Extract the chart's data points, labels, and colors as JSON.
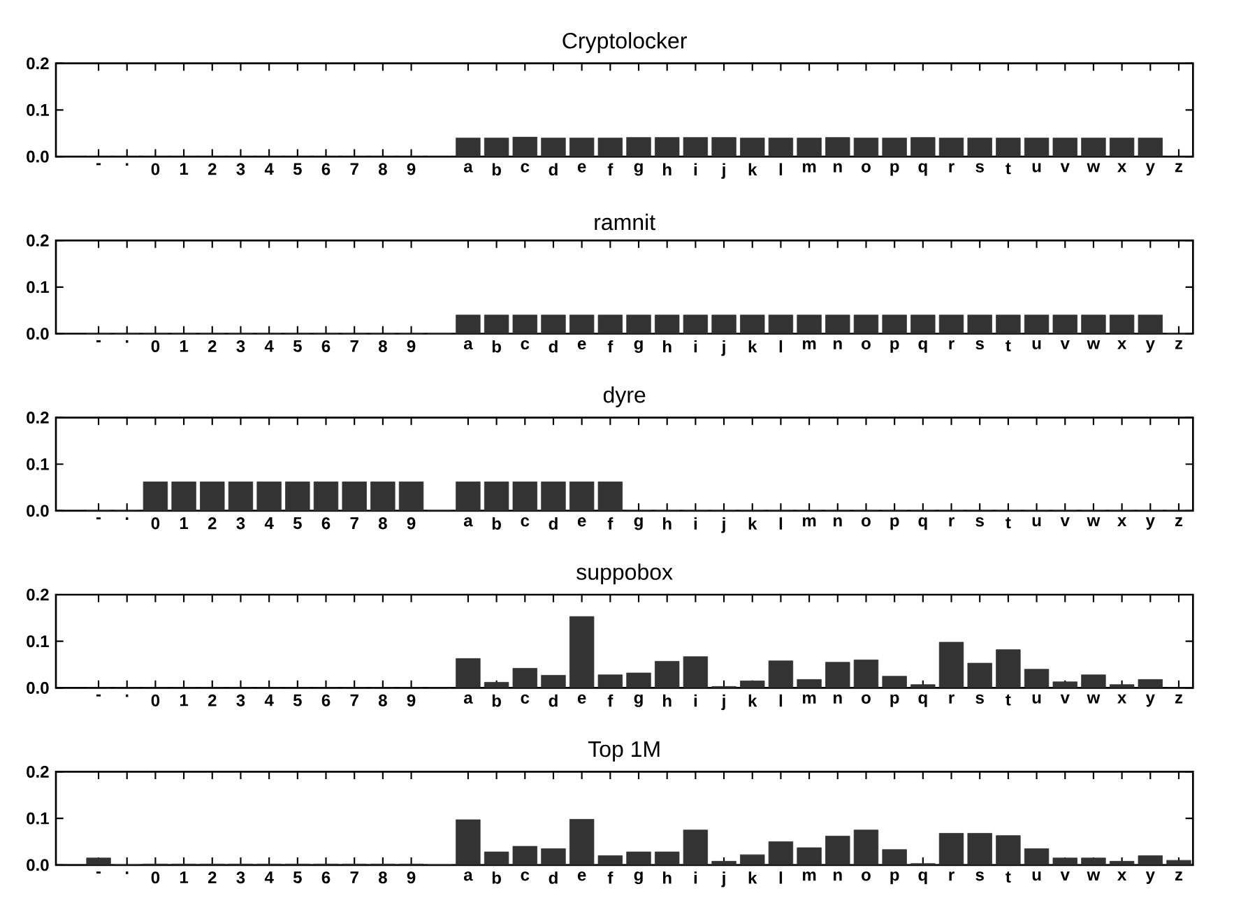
{
  "chart_data": [
    {
      "type": "bar",
      "title": "Cryptolocker",
      "categories": [
        "-",
        ".",
        "0",
        "1",
        "2",
        "3",
        "4",
        "5",
        "6",
        "7",
        "8",
        "9",
        null,
        "a",
        "b",
        "c",
        "d",
        "e",
        "f",
        "g",
        "h",
        "i",
        "j",
        "k",
        "l",
        "m",
        "n",
        "o",
        "p",
        "q",
        "r",
        "s",
        "t",
        "u",
        "v",
        "w",
        "x",
        "y",
        "z"
      ],
      "values": [
        0,
        0,
        0,
        0,
        0,
        0,
        0,
        0,
        0,
        0,
        0,
        0,
        0,
        0.04,
        0.04,
        0.042,
        0.04,
        0.04,
        0.04,
        0.041,
        0.041,
        0.041,
        0.041,
        0.04,
        0.04,
        0.04,
        0.041,
        0.04,
        0.04,
        0.041,
        0.04,
        0.04,
        0.04,
        0.04,
        0.04,
        0.04,
        0.04,
        0.04,
        0
      ],
      "color": "#333333",
      "ylim": [
        0,
        0.2
      ],
      "yticks": [
        {
          "value": 0,
          "label": "0.0"
        },
        {
          "value": 0.1,
          "label": "0.1"
        },
        {
          "value": 0.2,
          "label": "0.2"
        }
      ]
    },
    {
      "type": "bar",
      "title": "ramnit",
      "categories": [
        "-",
        ".",
        "0",
        "1",
        "2",
        "3",
        "4",
        "5",
        "6",
        "7",
        "8",
        "9",
        null,
        "a",
        "b",
        "c",
        "d",
        "e",
        "f",
        "g",
        "h",
        "i",
        "j",
        "k",
        "l",
        "m",
        "n",
        "o",
        "p",
        "q",
        "r",
        "s",
        "t",
        "u",
        "v",
        "w",
        "x",
        "y",
        "z"
      ],
      "values": [
        0,
        0,
        0,
        0,
        0,
        0,
        0,
        0,
        0,
        0,
        0,
        0,
        0,
        0.04,
        0.04,
        0.04,
        0.04,
        0.04,
        0.04,
        0.04,
        0.04,
        0.04,
        0.04,
        0.04,
        0.04,
        0.04,
        0.04,
        0.04,
        0.04,
        0.04,
        0.04,
        0.04,
        0.04,
        0.04,
        0.04,
        0.04,
        0.04,
        0.04,
        0
      ],
      "color": "#333333",
      "ylim": [
        0,
        0.2
      ],
      "yticks": [
        {
          "value": 0,
          "label": "0.0"
        },
        {
          "value": 0.1,
          "label": "0.1"
        },
        {
          "value": 0.2,
          "label": "0.2"
        }
      ]
    },
    {
      "type": "bar",
      "title": "dyre",
      "categories": [
        "-",
        ".",
        "0",
        "1",
        "2",
        "3",
        "4",
        "5",
        "6",
        "7",
        "8",
        "9",
        null,
        "a",
        "b",
        "c",
        "d",
        "e",
        "f",
        "g",
        "h",
        "i",
        "j",
        "k",
        "l",
        "m",
        "n",
        "o",
        "p",
        "q",
        "r",
        "s",
        "t",
        "u",
        "v",
        "w",
        "x",
        "y",
        "z"
      ],
      "values": [
        0,
        0,
        0.062,
        0.062,
        0.062,
        0.062,
        0.062,
        0.062,
        0.062,
        0.062,
        0.062,
        0.062,
        0,
        0.062,
        0.062,
        0.062,
        0.062,
        0.062,
        0.062,
        0,
        0,
        0,
        0,
        0,
        0,
        0,
        0,
        0,
        0,
        0,
        0,
        0,
        0,
        0,
        0,
        0,
        0,
        0,
        0
      ],
      "color": "#333333",
      "ylim": [
        0,
        0.2
      ],
      "yticks": [
        {
          "value": 0,
          "label": "0.0"
        },
        {
          "value": 0.1,
          "label": "0.1"
        },
        {
          "value": 0.2,
          "label": "0.2"
        }
      ]
    },
    {
      "type": "bar",
      "title": "suppobox",
      "categories": [
        "-",
        ".",
        "0",
        "1",
        "2",
        "3",
        "4",
        "5",
        "6",
        "7",
        "8",
        "9",
        null,
        "a",
        "b",
        "c",
        "d",
        "e",
        "f",
        "g",
        "h",
        "i",
        "j",
        "k",
        "l",
        "m",
        "n",
        "o",
        "p",
        "q",
        "r",
        "s",
        "t",
        "u",
        "v",
        "w",
        "x",
        "y",
        "z"
      ],
      "values": [
        0,
        0,
        0,
        0,
        0,
        0,
        0,
        0,
        0,
        0,
        0,
        0,
        0,
        0.063,
        0.012,
        0.042,
        0.027,
        0.153,
        0.028,
        0.032,
        0.057,
        0.067,
        0.003,
        0.015,
        0.058,
        0.018,
        0.055,
        0.06,
        0.025,
        0.007,
        0.098,
        0.053,
        0.082,
        0.04,
        0.013,
        0.028,
        0.007,
        0.018,
        0
      ],
      "color": "#333333",
      "ylim": [
        0,
        0.2
      ],
      "yticks": [
        {
          "value": 0,
          "label": "0.0"
        },
        {
          "value": 0.1,
          "label": "0.1"
        },
        {
          "value": 0.2,
          "label": "0.2"
        }
      ]
    },
    {
      "type": "bar",
      "title": "Top 1M",
      "categories": [
        "-",
        ".",
        "0",
        "1",
        "2",
        "3",
        "4",
        "5",
        "6",
        "7",
        "8",
        "9",
        null,
        "a",
        "b",
        "c",
        "d",
        "e",
        "f",
        "g",
        "h",
        "i",
        "j",
        "k",
        "l",
        "m",
        "n",
        "o",
        "p",
        "q",
        "r",
        "s",
        "t",
        "u",
        "v",
        "w",
        "x",
        "y",
        "z"
      ],
      "values": [
        0.015,
        0,
        0.002,
        0.002,
        0.002,
        0.002,
        0.002,
        0.002,
        0.002,
        0.002,
        0.002,
        0.002,
        0,
        0.097,
        0.028,
        0.04,
        0.035,
        0.098,
        0.02,
        0.028,
        0.028,
        0.075,
        0.008,
        0.022,
        0.05,
        0.037,
        0.062,
        0.075,
        0.033,
        0.003,
        0.068,
        0.068,
        0.063,
        0.035,
        0.015,
        0.015,
        0.008,
        0.02,
        0.01
      ],
      "color": "#333333",
      "ylim": [
        0,
        0.2
      ],
      "yticks": [
        {
          "value": 0,
          "label": "0.0"
        },
        {
          "value": 0.1,
          "label": "0.1"
        },
        {
          "value": 0.2,
          "label": "0.2"
        }
      ]
    }
  ]
}
